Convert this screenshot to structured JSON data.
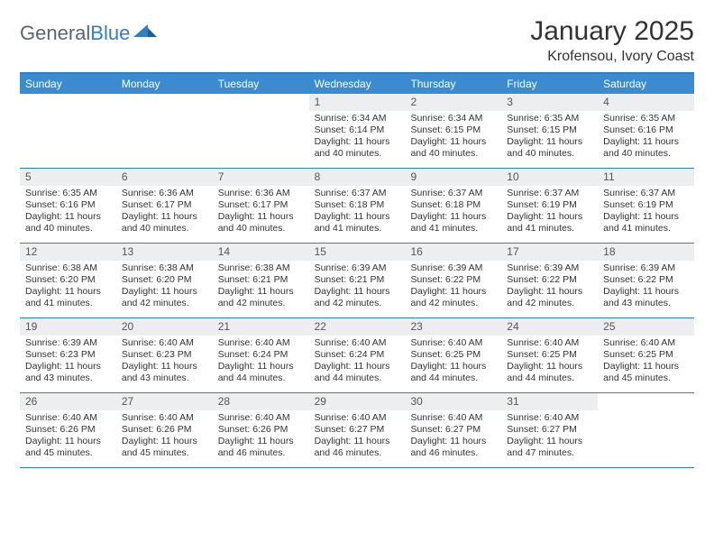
{
  "logo": {
    "text1": "General",
    "text2": "Blue"
  },
  "title": "January 2025",
  "location": "Krofensou, Ivory Coast",
  "colors": {
    "header_bg": "#3a8bd0",
    "border": "#2f7fc2",
    "daynum_bg": "#eceeef",
    "text": "#333333"
  },
  "dow": [
    "Sunday",
    "Monday",
    "Tuesday",
    "Wednesday",
    "Thursday",
    "Friday",
    "Saturday"
  ],
  "weeks": [
    [
      {
        "n": "",
        "empty": true
      },
      {
        "n": "",
        "empty": true
      },
      {
        "n": "",
        "empty": true
      },
      {
        "n": "1",
        "sr": "6:34 AM",
        "ss": "6:14 PM",
        "dl": "11 hours and 40 minutes."
      },
      {
        "n": "2",
        "sr": "6:34 AM",
        "ss": "6:15 PM",
        "dl": "11 hours and 40 minutes."
      },
      {
        "n": "3",
        "sr": "6:35 AM",
        "ss": "6:15 PM",
        "dl": "11 hours and 40 minutes."
      },
      {
        "n": "4",
        "sr": "6:35 AM",
        "ss": "6:16 PM",
        "dl": "11 hours and 40 minutes."
      }
    ],
    [
      {
        "n": "5",
        "sr": "6:35 AM",
        "ss": "6:16 PM",
        "dl": "11 hours and 40 minutes."
      },
      {
        "n": "6",
        "sr": "6:36 AM",
        "ss": "6:17 PM",
        "dl": "11 hours and 40 minutes."
      },
      {
        "n": "7",
        "sr": "6:36 AM",
        "ss": "6:17 PM",
        "dl": "11 hours and 40 minutes."
      },
      {
        "n": "8",
        "sr": "6:37 AM",
        "ss": "6:18 PM",
        "dl": "11 hours and 41 minutes."
      },
      {
        "n": "9",
        "sr": "6:37 AM",
        "ss": "6:18 PM",
        "dl": "11 hours and 41 minutes."
      },
      {
        "n": "10",
        "sr": "6:37 AM",
        "ss": "6:19 PM",
        "dl": "11 hours and 41 minutes."
      },
      {
        "n": "11",
        "sr": "6:37 AM",
        "ss": "6:19 PM",
        "dl": "11 hours and 41 minutes."
      }
    ],
    [
      {
        "n": "12",
        "sr": "6:38 AM",
        "ss": "6:20 PM",
        "dl": "11 hours and 41 minutes."
      },
      {
        "n": "13",
        "sr": "6:38 AM",
        "ss": "6:20 PM",
        "dl": "11 hours and 42 minutes."
      },
      {
        "n": "14",
        "sr": "6:38 AM",
        "ss": "6:21 PM",
        "dl": "11 hours and 42 minutes."
      },
      {
        "n": "15",
        "sr": "6:39 AM",
        "ss": "6:21 PM",
        "dl": "11 hours and 42 minutes."
      },
      {
        "n": "16",
        "sr": "6:39 AM",
        "ss": "6:22 PM",
        "dl": "11 hours and 42 minutes."
      },
      {
        "n": "17",
        "sr": "6:39 AM",
        "ss": "6:22 PM",
        "dl": "11 hours and 42 minutes."
      },
      {
        "n": "18",
        "sr": "6:39 AM",
        "ss": "6:22 PM",
        "dl": "11 hours and 43 minutes."
      }
    ],
    [
      {
        "n": "19",
        "sr": "6:39 AM",
        "ss": "6:23 PM",
        "dl": "11 hours and 43 minutes."
      },
      {
        "n": "20",
        "sr": "6:40 AM",
        "ss": "6:23 PM",
        "dl": "11 hours and 43 minutes."
      },
      {
        "n": "21",
        "sr": "6:40 AM",
        "ss": "6:24 PM",
        "dl": "11 hours and 44 minutes."
      },
      {
        "n": "22",
        "sr": "6:40 AM",
        "ss": "6:24 PM",
        "dl": "11 hours and 44 minutes."
      },
      {
        "n": "23",
        "sr": "6:40 AM",
        "ss": "6:25 PM",
        "dl": "11 hours and 44 minutes."
      },
      {
        "n": "24",
        "sr": "6:40 AM",
        "ss": "6:25 PM",
        "dl": "11 hours and 44 minutes."
      },
      {
        "n": "25",
        "sr": "6:40 AM",
        "ss": "6:25 PM",
        "dl": "11 hours and 45 minutes."
      }
    ],
    [
      {
        "n": "26",
        "sr": "6:40 AM",
        "ss": "6:26 PM",
        "dl": "11 hours and 45 minutes."
      },
      {
        "n": "27",
        "sr": "6:40 AM",
        "ss": "6:26 PM",
        "dl": "11 hours and 45 minutes."
      },
      {
        "n": "28",
        "sr": "6:40 AM",
        "ss": "6:26 PM",
        "dl": "11 hours and 46 minutes."
      },
      {
        "n": "29",
        "sr": "6:40 AM",
        "ss": "6:27 PM",
        "dl": "11 hours and 46 minutes."
      },
      {
        "n": "30",
        "sr": "6:40 AM",
        "ss": "6:27 PM",
        "dl": "11 hours and 46 minutes."
      },
      {
        "n": "31",
        "sr": "6:40 AM",
        "ss": "6:27 PM",
        "dl": "11 hours and 47 minutes."
      },
      {
        "n": "",
        "empty": true
      }
    ]
  ],
  "labels": {
    "sunrise": "Sunrise:",
    "sunset": "Sunset:",
    "daylight": "Daylight:"
  }
}
